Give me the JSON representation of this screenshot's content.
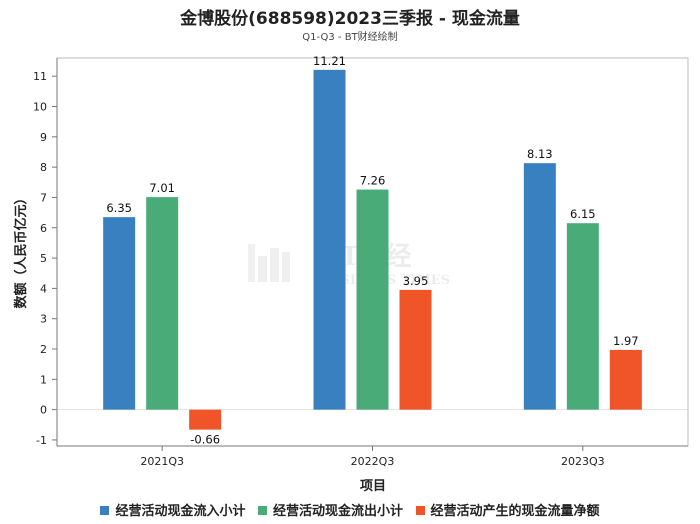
{
  "chart_data": {
    "type": "bar",
    "title": "金博股份(688598)2023三季报 - 现金流量",
    "subtitle": "Q1-Q3 - BT财经绘制",
    "xlabel": "项目",
    "ylabel": "数额（人民币亿元）",
    "categories": [
      "2021Q3",
      "2022Q3",
      "2023Q3"
    ],
    "ylim": [
      -1.2,
      11.6
    ],
    "yticks": [
      -1,
      0,
      1,
      2,
      3,
      4,
      5,
      6,
      7,
      8,
      9,
      10,
      11
    ],
    "series": [
      {
        "name": "经营活动现金流入小计",
        "color": "#3880c0",
        "values": [
          6.35,
          11.21,
          8.13
        ],
        "labels": [
          "6.35",
          "11.21",
          "8.13"
        ]
      },
      {
        "name": "经营活动现金流出小计",
        "color": "#49ac78",
        "values": [
          7.01,
          7.26,
          6.15
        ],
        "labels": [
          "7.01",
          "7.26",
          "6.15"
        ]
      },
      {
        "name": "经营活动产生的现金流量净额",
        "color": "#f0552a",
        "values": [
          -0.66,
          3.95,
          1.97
        ],
        "labels": [
          "-0.66",
          "3.95",
          "1.97"
        ]
      }
    ],
    "watermark": "BT财经 BUSINESS TIMES",
    "legend_position": "bottom",
    "grid": false
  }
}
